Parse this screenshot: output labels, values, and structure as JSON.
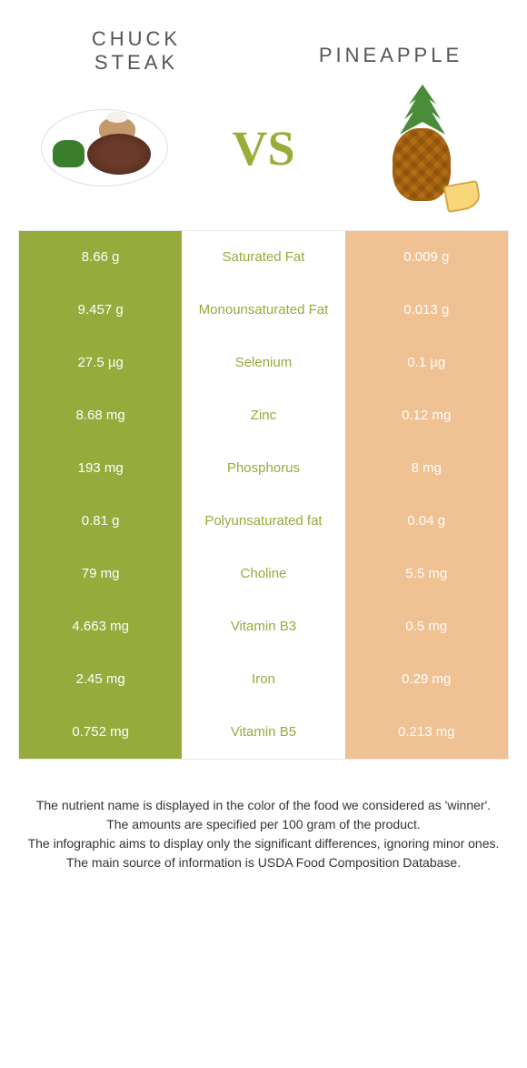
{
  "header": {
    "left_title": "CHUCK STEAK",
    "right_title": "PINEAPPLE",
    "vs": "VS"
  },
  "colors": {
    "left_winner": "#95ab3c",
    "left_loser": "#c7d494",
    "right_winner": "#e48c3a",
    "right_loser": "#f0c193",
    "mid_text_left_win": "#95ab3c",
    "mid_text_right_win": "#e48c3a"
  },
  "rows": [
    {
      "nutrient": "Saturated Fat",
      "left": "8.66 g",
      "right": "0.009 g",
      "winner": "left"
    },
    {
      "nutrient": "Monounsaturated Fat",
      "left": "9.457 g",
      "right": "0.013 g",
      "winner": "left"
    },
    {
      "nutrient": "Selenium",
      "left": "27.5 µg",
      "right": "0.1 µg",
      "winner": "left"
    },
    {
      "nutrient": "Zinc",
      "left": "8.68 mg",
      "right": "0.12 mg",
      "winner": "left"
    },
    {
      "nutrient": "Phosphorus",
      "left": "193 mg",
      "right": "8 mg",
      "winner": "left"
    },
    {
      "nutrient": "Polyunsaturated fat",
      "left": "0.81 g",
      "right": "0.04 g",
      "winner": "left"
    },
    {
      "nutrient": "Choline",
      "left": "79 mg",
      "right": "5.5 mg",
      "winner": "left"
    },
    {
      "nutrient": "Vitamin B3",
      "left": "4.663 mg",
      "right": "0.5 mg",
      "winner": "left"
    },
    {
      "nutrient": "Iron",
      "left": "2.45 mg",
      "right": "0.29 mg",
      "winner": "left"
    },
    {
      "nutrient": "Vitamin B5",
      "left": "0.752 mg",
      "right": "0.213 mg",
      "winner": "left"
    }
  ],
  "footer": {
    "line1": "The nutrient name is displayed in the color of the food we considered as 'winner'.",
    "line2": "The amounts are specified per 100 gram of the product.",
    "line3": "The infographic aims to display only the significant differences, ignoring minor ones.",
    "line4": "The main source of information is USDA Food Composition Database."
  }
}
